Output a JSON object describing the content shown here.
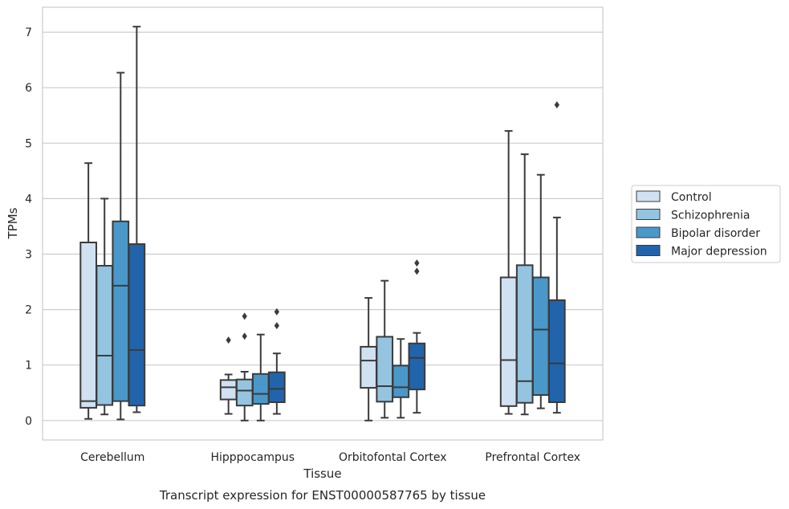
{
  "chart_data": {
    "type": "box",
    "xlabel": "Tissue",
    "ylabel": "TPMs",
    "caption": "Transcript expression for ENST00000587765 by tissue",
    "ylim": [
      -0.35,
      7.45
    ],
    "yticks": [
      0,
      1,
      2,
      3,
      4,
      5,
      6,
      7
    ],
    "grid": "horizontal",
    "legend_position": "right",
    "categories": [
      "Cerebellum",
      "Hipppocampus",
      "Orbitofontal Cortex",
      "Prefrontal Cortex"
    ],
    "series": [
      {
        "name": "Control",
        "color": "#d0e1f2",
        "boxes": [
          {
            "whislo": 0.03,
            "q1": 0.23,
            "median": 0.35,
            "q3": 3.21,
            "whishi": 4.64,
            "fliers": []
          },
          {
            "whislo": 0.12,
            "q1": 0.38,
            "median": 0.6,
            "q3": 0.73,
            "whishi": 0.83,
            "fliers": [
              1.45
            ]
          },
          {
            "whislo": 0.0,
            "q1": 0.59,
            "median": 1.08,
            "q3": 1.33,
            "whishi": 2.21,
            "fliers": []
          },
          {
            "whislo": 0.12,
            "q1": 0.26,
            "median": 1.09,
            "q3": 2.58,
            "whishi": 5.22,
            "fliers": []
          }
        ]
      },
      {
        "name": "Schizophrenia",
        "color": "#94c4df",
        "boxes": [
          {
            "whislo": 0.11,
            "q1": 0.28,
            "median": 1.17,
            "q3": 2.79,
            "whishi": 4.0,
            "fliers": []
          },
          {
            "whislo": 0.0,
            "q1": 0.27,
            "median": 0.54,
            "q3": 0.74,
            "whishi": 0.88,
            "fliers": [
              1.88,
              1.52
            ]
          },
          {
            "whislo": 0.05,
            "q1": 0.34,
            "median": 0.62,
            "q3": 1.51,
            "whishi": 2.52,
            "fliers": []
          },
          {
            "whislo": 0.11,
            "q1": 0.32,
            "median": 0.71,
            "q3": 2.8,
            "whishi": 4.8,
            "fliers": []
          }
        ]
      },
      {
        "name": "Bipolar disorder",
        "color": "#4a98c9",
        "boxes": [
          {
            "whislo": 0.02,
            "q1": 0.35,
            "median": 2.43,
            "q3": 3.59,
            "whishi": 6.27,
            "fliers": []
          },
          {
            "whislo": 0.0,
            "q1": 0.3,
            "median": 0.48,
            "q3": 0.84,
            "whishi": 1.55,
            "fliers": []
          },
          {
            "whislo": 0.05,
            "q1": 0.42,
            "median": 0.6,
            "q3": 0.99,
            "whishi": 1.47,
            "fliers": []
          },
          {
            "whislo": 0.22,
            "q1": 0.46,
            "median": 1.64,
            "q3": 2.58,
            "whishi": 4.43,
            "fliers": []
          }
        ]
      },
      {
        "name": "Major depression",
        "color": "#2164ab",
        "boxes": [
          {
            "whislo": 0.15,
            "q1": 0.27,
            "median": 1.27,
            "q3": 3.18,
            "whishi": 7.1,
            "fliers": []
          },
          {
            "whislo": 0.12,
            "q1": 0.33,
            "median": 0.57,
            "q3": 0.87,
            "whishi": 1.21,
            "fliers": [
              1.96,
              1.71
            ]
          },
          {
            "whislo": 0.14,
            "q1": 0.56,
            "median": 1.13,
            "q3": 1.39,
            "whishi": 1.58,
            "fliers": [
              2.84,
              2.69
            ]
          },
          {
            "whislo": 0.14,
            "q1": 0.33,
            "median": 1.03,
            "q3": 2.17,
            "whishi": 3.66,
            "fliers": [
              5.69
            ]
          }
        ]
      }
    ]
  }
}
